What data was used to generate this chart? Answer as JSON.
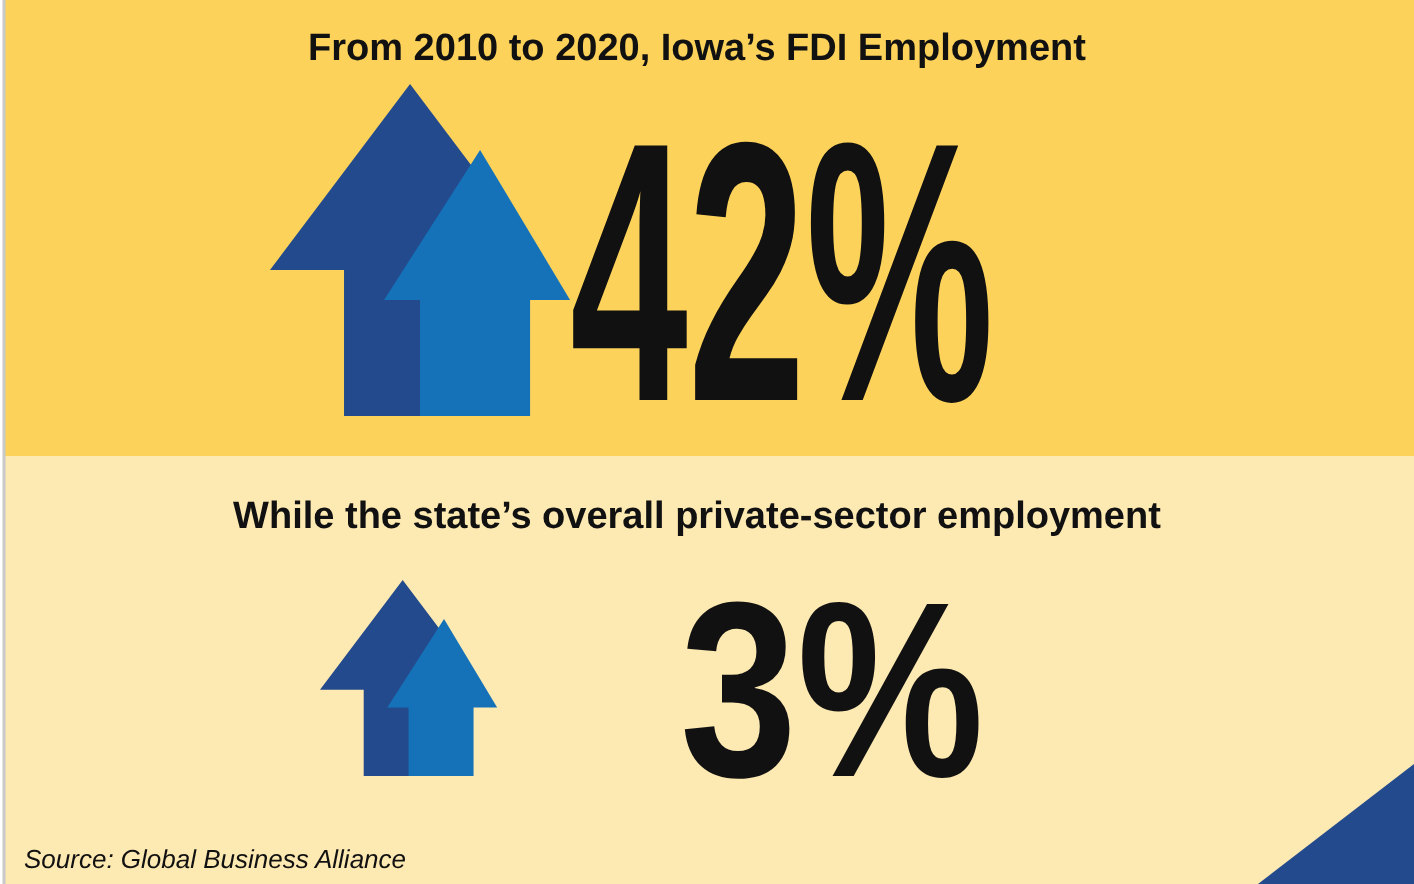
{
  "chart_data": {
    "type": "other",
    "categories": [
      "From 2010 to 2020, Iowa’s FDI Employment",
      "While the state’s overall private-sector employment"
    ],
    "values": [
      42,
      3
    ],
    "value_labels": [
      "42%",
      "3%"
    ],
    "colors": [
      "#fcd25a",
      "#fde9b2"
    ],
    "annotations": [
      "Source: Global Business Alliance"
    ]
  }
}
